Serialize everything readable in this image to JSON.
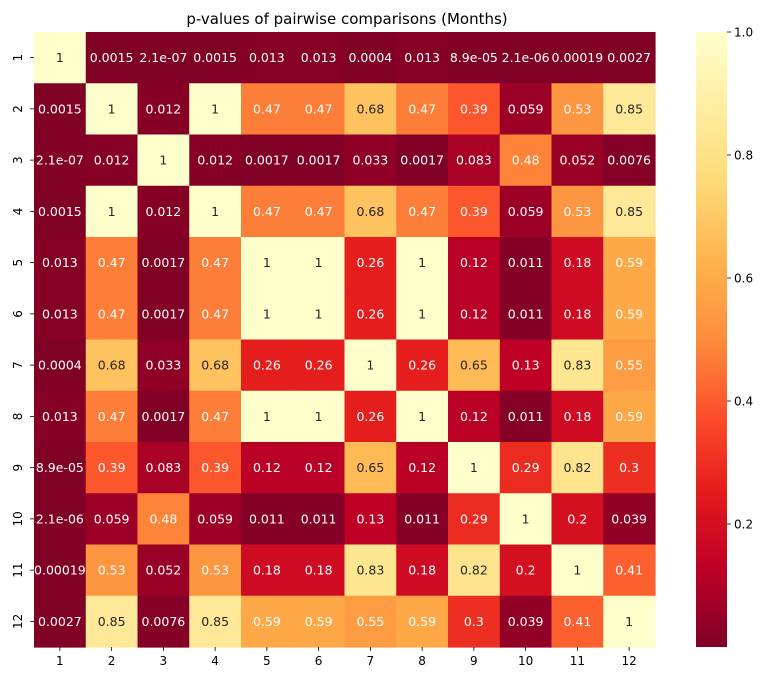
{
  "chart_data": {
    "type": "heatmap",
    "title": "p-values of pairwise comparisons (Months)",
    "row_labels": [
      "1",
      "2",
      "3",
      "4",
      "5",
      "6",
      "7",
      "8",
      "9",
      "10",
      "11",
      "12"
    ],
    "col_labels": [
      "1",
      "2",
      "3",
      "4",
      "5",
      "6",
      "7",
      "8",
      "9",
      "10",
      "11",
      "12"
    ],
    "values": [
      [
        1,
        0.0015,
        2.1e-07,
        0.0015,
        0.013,
        0.013,
        0.0004,
        0.013,
        8.9e-05,
        2.1e-06,
        0.00019,
        0.0027
      ],
      [
        0.0015,
        1,
        0.012,
        1,
        0.47,
        0.47,
        0.68,
        0.47,
        0.39,
        0.059,
        0.53,
        0.85
      ],
      [
        2.1e-07,
        0.012,
        1,
        0.012,
        0.0017,
        0.0017,
        0.033,
        0.0017,
        0.083,
        0.48,
        0.052,
        0.0076
      ],
      [
        0.0015,
        1,
        0.012,
        1,
        0.47,
        0.47,
        0.68,
        0.47,
        0.39,
        0.059,
        0.53,
        0.85
      ],
      [
        0.013,
        0.47,
        0.0017,
        0.47,
        1,
        1,
        0.26,
        1,
        0.12,
        0.011,
        0.18,
        0.59
      ],
      [
        0.013,
        0.47,
        0.0017,
        0.47,
        1,
        1,
        0.26,
        1,
        0.12,
        0.011,
        0.18,
        0.59
      ],
      [
        0.0004,
        0.68,
        0.033,
        0.68,
        0.26,
        0.26,
        1,
        0.26,
        0.65,
        0.13,
        0.83,
        0.55
      ],
      [
        0.013,
        0.47,
        0.0017,
        0.47,
        1,
        1,
        0.26,
        1,
        0.12,
        0.011,
        0.18,
        0.59
      ],
      [
        8.9e-05,
        0.39,
        0.083,
        0.39,
        0.12,
        0.12,
        0.65,
        0.12,
        1,
        0.29,
        0.82,
        0.3
      ],
      [
        2.1e-06,
        0.059,
        0.48,
        0.059,
        0.011,
        0.011,
        0.13,
        0.011,
        0.29,
        1,
        0.2,
        0.039
      ],
      [
        0.00019,
        0.53,
        0.052,
        0.53,
        0.18,
        0.18,
        0.83,
        0.18,
        0.82,
        0.2,
        1,
        0.41
      ],
      [
        0.0027,
        0.85,
        0.0076,
        0.85,
        0.59,
        0.59,
        0.55,
        0.59,
        0.3,
        0.039,
        0.41,
        1
      ]
    ],
    "annotations": [
      [
        "1",
        "0.0015",
        "2.1e-07",
        "0.0015",
        "0.013",
        "0.013",
        "0.0004",
        "0.013",
        "8.9e-05",
        "2.1e-06",
        "0.00019",
        "0.0027"
      ],
      [
        "0.0015",
        "1",
        "0.012",
        "1",
        "0.47",
        "0.47",
        "0.68",
        "0.47",
        "0.39",
        "0.059",
        "0.53",
        "0.85"
      ],
      [
        "2.1e-07",
        "0.012",
        "1",
        "0.012",
        "0.0017",
        "0.0017",
        "0.033",
        "0.0017",
        "0.083",
        "0.48",
        "0.052",
        "0.0076"
      ],
      [
        "0.0015",
        "1",
        "0.012",
        "1",
        "0.47",
        "0.47",
        "0.68",
        "0.47",
        "0.39",
        "0.059",
        "0.53",
        "0.85"
      ],
      [
        "0.013",
        "0.47",
        "0.0017",
        "0.47",
        "1",
        "1",
        "0.26",
        "1",
        "0.12",
        "0.011",
        "0.18",
        "0.59"
      ],
      [
        "0.013",
        "0.47",
        "0.0017",
        "0.47",
        "1",
        "1",
        "0.26",
        "1",
        "0.12",
        "0.011",
        "0.18",
        "0.59"
      ],
      [
        "0.0004",
        "0.68",
        "0.033",
        "0.68",
        "0.26",
        "0.26",
        "1",
        "0.26",
        "0.65",
        "0.13",
        "0.83",
        "0.55"
      ],
      [
        "0.013",
        "0.47",
        "0.0017",
        "0.47",
        "1",
        "1",
        "0.26",
        "1",
        "0.12",
        "0.011",
        "0.18",
        "0.59"
      ],
      [
        "8.9e-05",
        "0.39",
        "0.083",
        "0.39",
        "0.12",
        "0.12",
        "0.65",
        "0.12",
        "1",
        "0.29",
        "0.82",
        "0.3"
      ],
      [
        "2.1e-06",
        "0.059",
        "0.48",
        "0.059",
        "0.011",
        "0.011",
        "0.13",
        "0.011",
        "0.29",
        "1",
        "0.2",
        "0.039"
      ],
      [
        "0.00019",
        "0.53",
        "0.052",
        "0.53",
        "0.18",
        "0.18",
        "0.83",
        "0.18",
        "0.82",
        "0.2",
        "1",
        "0.41"
      ],
      [
        "0.0027",
        "0.85",
        "0.0076",
        "0.85",
        "0.59",
        "0.59",
        "0.55",
        "0.59",
        "0.3",
        "0.039",
        "0.41",
        "1"
      ]
    ],
    "colorbar": {
      "colormap": "YlOrRd_r",
      "range": [
        0,
        1
      ],
      "ticks": [
        0.2,
        0.4,
        0.6,
        0.8,
        1.0
      ],
      "tick_labels": [
        "0.2",
        "0.4",
        "0.6",
        "0.8",
        "1.0"
      ]
    },
    "colors": {
      "low": "#800026",
      "high": "#ffffcc"
    }
  }
}
